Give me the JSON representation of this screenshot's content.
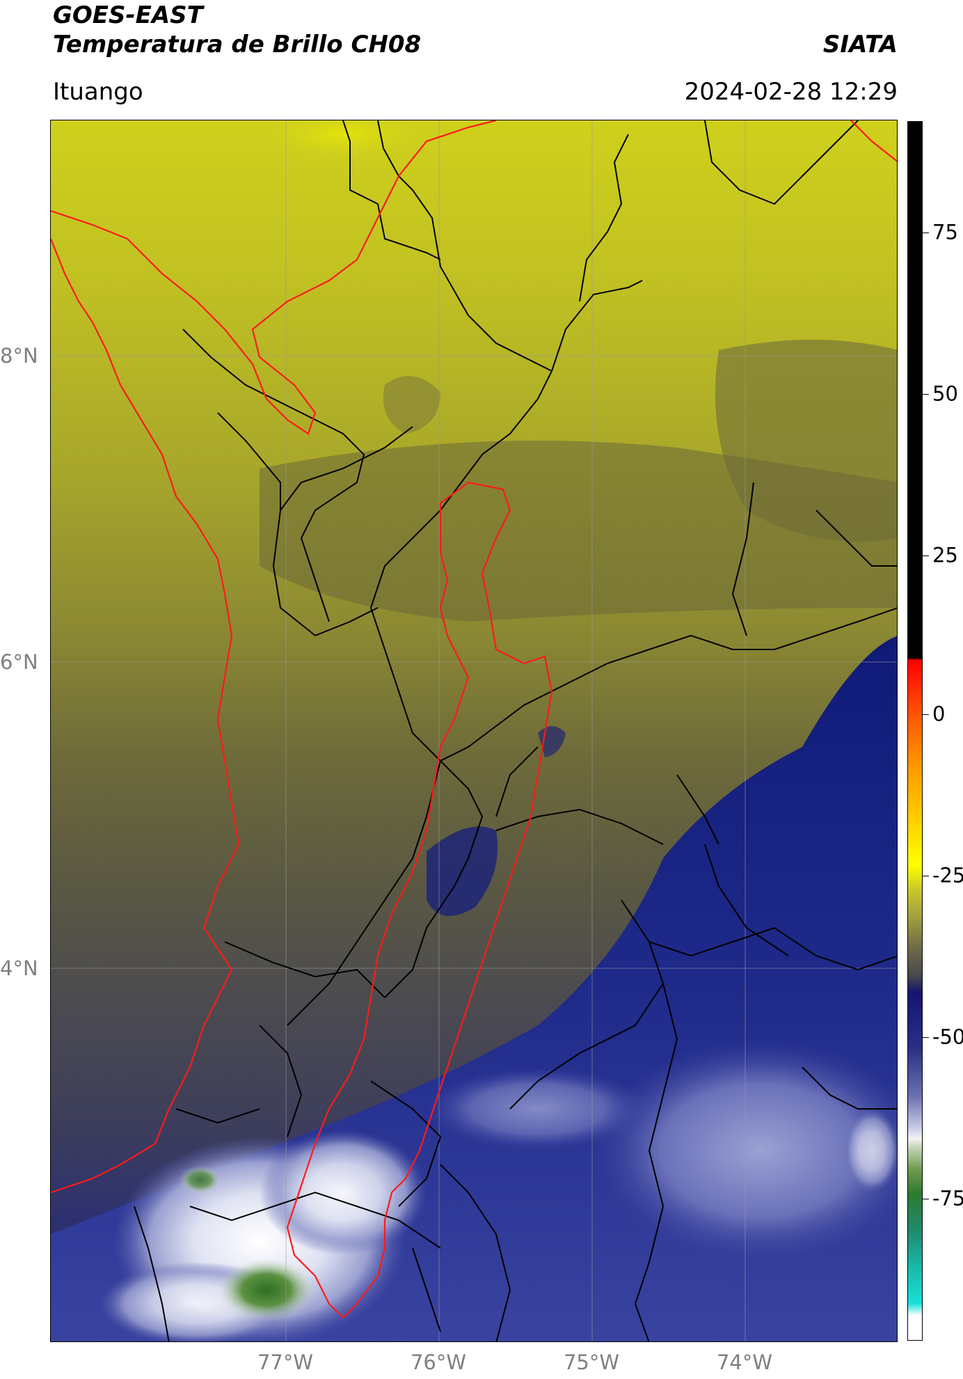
{
  "header": {
    "satellite": "GOES-EAST",
    "product": "Temperatura de Brillo CH08",
    "organization": "SIATA",
    "region": "Ituango",
    "datetime": "2024-02-28 12:29"
  },
  "map": {
    "lat_labels": [
      "8°N",
      "6°N",
      "4°N"
    ],
    "lon_labels": [
      "77°W",
      "76°W",
      "75°W",
      "74°W"
    ]
  },
  "colorbar": {
    "tick_labels": [
      "75",
      "50",
      "25",
      "0",
      "-25",
      "-50",
      "-75"
    ],
    "tick_values": [
      75,
      50,
      25,
      0,
      -25,
      -50,
      -75
    ],
    "range": [
      -100,
      92
    ]
  },
  "colors": {
    "bright_yellow": "#d6d814",
    "olive": "#9a9a2e",
    "dark_olive": "#656238",
    "gray": "#4b4b52",
    "navy": "#1c2277",
    "light_blue": "#7f86c2",
    "green": "#3f7d2b",
    "basin_outline": "#ff1a1a",
    "admin_outline": "#000000"
  }
}
